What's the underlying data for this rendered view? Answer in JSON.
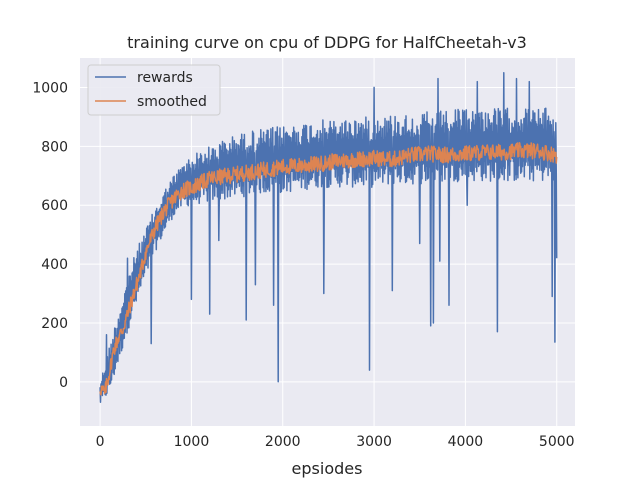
{
  "chart_data": {
    "type": "line",
    "title": "training curve on cpu of DDPG for HalfCheetah-v3",
    "xlabel": "epsiodes",
    "ylabel": "",
    "xlim": [
      -220,
      5200
    ],
    "ylim": [
      -150,
      1100
    ],
    "x_ticks": [
      0,
      1000,
      2000,
      3000,
      4000,
      5000
    ],
    "y_ticks": [
      0,
      200,
      400,
      600,
      800,
      1000
    ],
    "grid": true,
    "legend_position": "top-left",
    "colors": {
      "background": "#eaeaf2",
      "grid": "#ffffff",
      "rewards": "#4c72b0",
      "smoothed": "#dd8452"
    },
    "series": [
      {
        "name": "rewards",
        "envelope_x": [
          0,
          100,
          200,
          300,
          400,
          500,
          600,
          700,
          800,
          900,
          1000,
          1200,
          1400,
          1600,
          1800,
          2000,
          2200,
          2400,
          2600,
          2800,
          3000,
          3200,
          3400,
          3600,
          3800,
          4000,
          4200,
          4400,
          4600,
          4800,
          5000
        ],
        "envelope_low": [
          -80,
          -40,
          60,
          170,
          260,
          350,
          440,
          500,
          560,
          590,
          600,
          610,
          620,
          630,
          640,
          640,
          650,
          660,
          660,
          660,
          660,
          670,
          670,
          670,
          680,
          680,
          680,
          680,
          680,
          680,
          680
        ],
        "envelope_high": [
          0,
          120,
          240,
          360,
          450,
          520,
          590,
          650,
          700,
          740,
          770,
          800,
          830,
          850,
          860,
          870,
          880,
          890,
          890,
          900,
          900,
          910,
          910,
          920,
          920,
          930,
          930,
          930,
          930,
          930,
          930
        ],
        "spikes": [
          [
            70,
            160
          ],
          [
            300,
            420
          ],
          [
            560,
            130
          ],
          [
            1000,
            280
          ],
          [
            1200,
            230
          ],
          [
            1300,
            480
          ],
          [
            1600,
            210
          ],
          [
            1700,
            330
          ],
          [
            1900,
            260
          ],
          [
            1950,
            0
          ],
          [
            2450,
            300
          ],
          [
            2950,
            40
          ],
          [
            3200,
            310
          ],
          [
            3500,
            470
          ],
          [
            3620,
            190
          ],
          [
            3650,
            200
          ],
          [
            3720,
            410
          ],
          [
            3820,
            260
          ],
          [
            4020,
            600
          ],
          [
            4350,
            170
          ],
          [
            4420,
            1050
          ],
          [
            4560,
            1030
          ],
          [
            4950,
            290
          ],
          [
            4980,
            135
          ],
          [
            5000,
            420
          ],
          [
            3000,
            1000
          ],
          [
            3700,
            1030
          ],
          [
            4130,
            1020
          ],
          [
            4700,
            1020
          ]
        ]
      },
      {
        "name": "smoothed",
        "x": [
          0,
          50,
          100,
          150,
          200,
          250,
          300,
          350,
          400,
          450,
          500,
          600,
          700,
          800,
          900,
          1000,
          1200,
          1400,
          1600,
          1800,
          2000,
          2200,
          2400,
          2600,
          2800,
          3000,
          3200,
          3400,
          3600,
          3800,
          4000,
          4200,
          4400,
          4600,
          4800,
          5000
        ],
        "y": [
          -20,
          -40,
          30,
          110,
          150,
          180,
          230,
          280,
          330,
          380,
          440,
          520,
          580,
          620,
          650,
          660,
          690,
          700,
          710,
          720,
          730,
          735,
          740,
          750,
          755,
          760,
          755,
          770,
          775,
          770,
          775,
          780,
          780,
          785,
          785,
          770
        ]
      }
    ]
  }
}
